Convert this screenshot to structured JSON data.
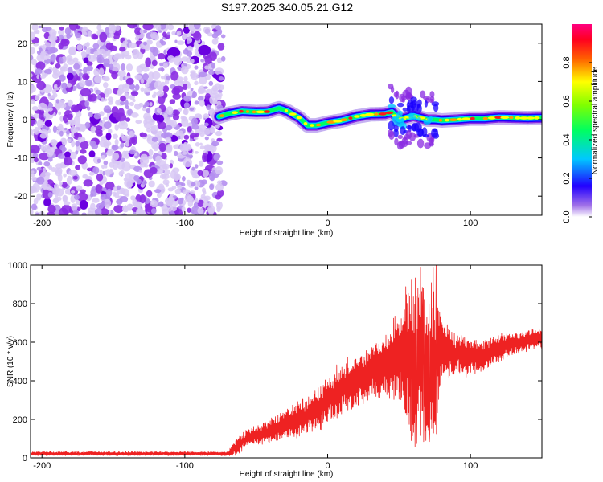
{
  "title": "S197.2025.340.05.21.G12",
  "chart_data": [
    {
      "type": "heatmap",
      "title": "S197.2025.340.05.21.G12",
      "xlabel": "Height of straight line (km)",
      "ylabel": "Frequency (Hz)",
      "xlim": [
        -208,
        150
      ],
      "ylim": [
        -25,
        25
      ],
      "xticks": [
        -200,
        -100,
        0,
        100
      ],
      "yticks": [
        -20,
        -10,
        0,
        10,
        20
      ],
      "noise_region_x": [
        -208,
        -73
      ],
      "signal_ridge": {
        "x": [
          -76,
          -70,
          -60,
          -50,
          -42,
          -34,
          -28,
          -20,
          -14,
          -8,
          0,
          10,
          20,
          30,
          40,
          45,
          50,
          55,
          60,
          65,
          70,
          75,
          80,
          90,
          100,
          110,
          120,
          130,
          140,
          150
        ],
        "freq_hz": [
          0.8,
          1.5,
          2.2,
          2.0,
          2.1,
          3.0,
          2.2,
          0.5,
          -1.5,
          -1.5,
          -0.8,
          -0.2,
          0.8,
          1.4,
          1.5,
          2.0,
          0.0,
          0.5,
          1.0,
          0.5,
          0.0,
          0.0,
          -0.2,
          0.0,
          0.3,
          0.3,
          0.6,
          0.5,
          0.4,
          0.5
        ]
      },
      "colorbar": {
        "label": "Normalized spectral amplitude",
        "range": [
          0,
          1
        ],
        "ticks": [
          "0.0",
          "0.2",
          "0.4",
          "0.6",
          "0.8"
        ],
        "tick_values": [
          0.0,
          0.2,
          0.4,
          0.6,
          0.8
        ]
      },
      "colors": [
        "#ffffff",
        "#8a2be2",
        "#0000ff",
        "#00ffff",
        "#00ff00",
        "#ffff00",
        "#ff0000",
        "#ff00ff"
      ]
    },
    {
      "type": "line",
      "xlabel": "Height of straight line (km)",
      "ylabel": "SNR (10 * v/v)",
      "xlim": [
        -208,
        150
      ],
      "ylim": [
        0,
        1000
      ],
      "xticks": [
        -200,
        -100,
        0,
        100
      ],
      "yticks": [
        0,
        200,
        400,
        600,
        800,
        1000
      ],
      "series": [
        {
          "name": "SNR",
          "color": "#ee2222",
          "envelope": {
            "x": [
              -208,
              -70,
              -64,
              -55,
              -40,
              -30,
              -20,
              -10,
              0,
              10,
              20,
              30,
              40,
              50,
              55,
              60,
              65,
              70,
              75,
              80,
              90,
              100,
              110,
              120,
              130,
              140,
              150
            ],
            "mean": [
              22,
              22,
              60,
              110,
              140,
              175,
              200,
              240,
              300,
              360,
              400,
              450,
              480,
              520,
              540,
              450,
              520,
              450,
              500,
              560,
              540,
              520,
              540,
              570,
              590,
              610,
              620
            ],
            "amp": [
              10,
              10,
              45,
              45,
              60,
              70,
              90,
              100,
              120,
              130,
              130,
              140,
              150,
              250,
              380,
              450,
              400,
              420,
              380,
              160,
              110,
              90,
              80,
              70,
              60,
              50,
              45
            ],
            "peaks_x": [
              59,
              62,
              65,
              67,
              68,
              71,
              74,
              76
            ],
            "peaks_y": [
              590,
              840,
              990,
              880,
              830,
              800,
              990,
              1000
            ]
          }
        }
      ]
    }
  ]
}
